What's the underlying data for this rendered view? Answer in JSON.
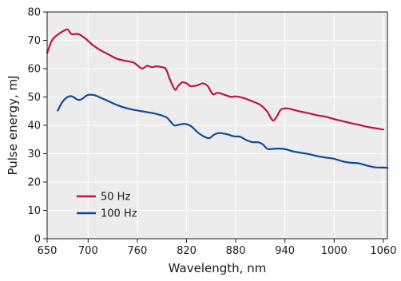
{
  "chart_data": {
    "type": "line",
    "title": "",
    "xlabel": "Wavelength, nm",
    "ylabel": "Pulse energy, mJ",
    "xlim": [
      650,
      1065
    ],
    "ylim": [
      0,
      80
    ],
    "x_ticks": [
      650,
      700,
      760,
      820,
      880,
      940,
      1000,
      1060
    ],
    "y_ticks": [
      0,
      10,
      20,
      30,
      40,
      50,
      60,
      70,
      80
    ],
    "x_tick_labels": [
      "650",
      "700",
      "760",
      "820",
      "880",
      "940",
      "1000",
      "1060"
    ],
    "y_tick_labels": [
      "0",
      "10",
      "20",
      "30",
      "40",
      "50",
      "60",
      "70",
      "80"
    ],
    "grid": "x and y",
    "plot_background": "#ececec",
    "legend_position": "bottom-left",
    "series": [
      {
        "name": "50 Hz",
        "color": "#c0104a",
        "points": [
          [
            650,
            65.5
          ],
          [
            656,
            70
          ],
          [
            663,
            72
          ],
          [
            670,
            73.3
          ],
          [
            675,
            73.8
          ],
          [
            680,
            72.2
          ],
          [
            688,
            72.2
          ],
          [
            696,
            70.8
          ],
          [
            705,
            68.5
          ],
          [
            715,
            66.5
          ],
          [
            725,
            65
          ],
          [
            735,
            63.5
          ],
          [
            745,
            62.8
          ],
          [
            755,
            62.2
          ],
          [
            760,
            61.2
          ],
          [
            766,
            60
          ],
          [
            772,
            61
          ],
          [
            778,
            60.5
          ],
          [
            783,
            60.8
          ],
          [
            790,
            60.5
          ],
          [
            795,
            59.8
          ],
          [
            800,
            56
          ],
          [
            806,
            52.6
          ],
          [
            810,
            54
          ],
          [
            815,
            55.2
          ],
          [
            820,
            54.8
          ],
          [
            825,
            53.8
          ],
          [
            833,
            54.1
          ],
          [
            840,
            54.8
          ],
          [
            846,
            53.8
          ],
          [
            852,
            51
          ],
          [
            858,
            51.5
          ],
          [
            864,
            51
          ],
          [
            870,
            50.4
          ],
          [
            875,
            50
          ],
          [
            880,
            50.2
          ],
          [
            890,
            49.6
          ],
          [
            900,
            48.5
          ],
          [
            910,
            47.2
          ],
          [
            918,
            45
          ],
          [
            923,
            42.5
          ],
          [
            926,
            41.7
          ],
          [
            930,
            43
          ],
          [
            935,
            45.5
          ],
          [
            942,
            46
          ],
          [
            950,
            45.5
          ],
          [
            960,
            44.8
          ],
          [
            970,
            44.2
          ],
          [
            980,
            43.5
          ],
          [
            990,
            43
          ],
          [
            1000,
            42.2
          ],
          [
            1010,
            41.5
          ],
          [
            1020,
            40.8
          ],
          [
            1030,
            40.2
          ],
          [
            1040,
            39.5
          ],
          [
            1050,
            39
          ],
          [
            1060,
            38.5
          ]
        ]
      },
      {
        "name": "100 Hz",
        "color": "#0e4a96",
        "points": [
          [
            663,
            45.2
          ],
          [
            668,
            48
          ],
          [
            673,
            49.6
          ],
          [
            678,
            50.3
          ],
          [
            682,
            50
          ],
          [
            686,
            49.2
          ],
          [
            690,
            49
          ],
          [
            694,
            49.6
          ],
          [
            698,
            50.5
          ],
          [
            702,
            50.8
          ],
          [
            708,
            50.6
          ],
          [
            715,
            49.8
          ],
          [
            725,
            48.5
          ],
          [
            735,
            47.2
          ],
          [
            745,
            46.2
          ],
          [
            755,
            45.5
          ],
          [
            765,
            45
          ],
          [
            775,
            44.5
          ],
          [
            785,
            43.9
          ],
          [
            795,
            42.9
          ],
          [
            800,
            41.5
          ],
          [
            805,
            40
          ],
          [
            812,
            40.3
          ],
          [
            818,
            40.5
          ],
          [
            825,
            39.8
          ],
          [
            835,
            37.2
          ],
          [
            843,
            35.8
          ],
          [
            848,
            35.5
          ],
          [
            853,
            36.6
          ],
          [
            858,
            37.2
          ],
          [
            863,
            37.2
          ],
          [
            870,
            36.8
          ],
          [
            878,
            36.1
          ],
          [
            885,
            36
          ],
          [
            893,
            34.8
          ],
          [
            900,
            34.1
          ],
          [
            908,
            34
          ],
          [
            913,
            33.3
          ],
          [
            918,
            31.8
          ],
          [
            922,
            31.6
          ],
          [
            930,
            31.8
          ],
          [
            940,
            31.6
          ],
          [
            950,
            30.8
          ],
          [
            960,
            30.3
          ],
          [
            970,
            29.8
          ],
          [
            980,
            29.1
          ],
          [
            990,
            28.6
          ],
          [
            1000,
            28.2
          ],
          [
            1010,
            27.3
          ],
          [
            1020,
            26.8
          ],
          [
            1030,
            26.6
          ],
          [
            1040,
            25.8
          ],
          [
            1050,
            25.2
          ],
          [
            1060,
            25.1
          ],
          [
            1065,
            25
          ]
        ]
      }
    ]
  }
}
